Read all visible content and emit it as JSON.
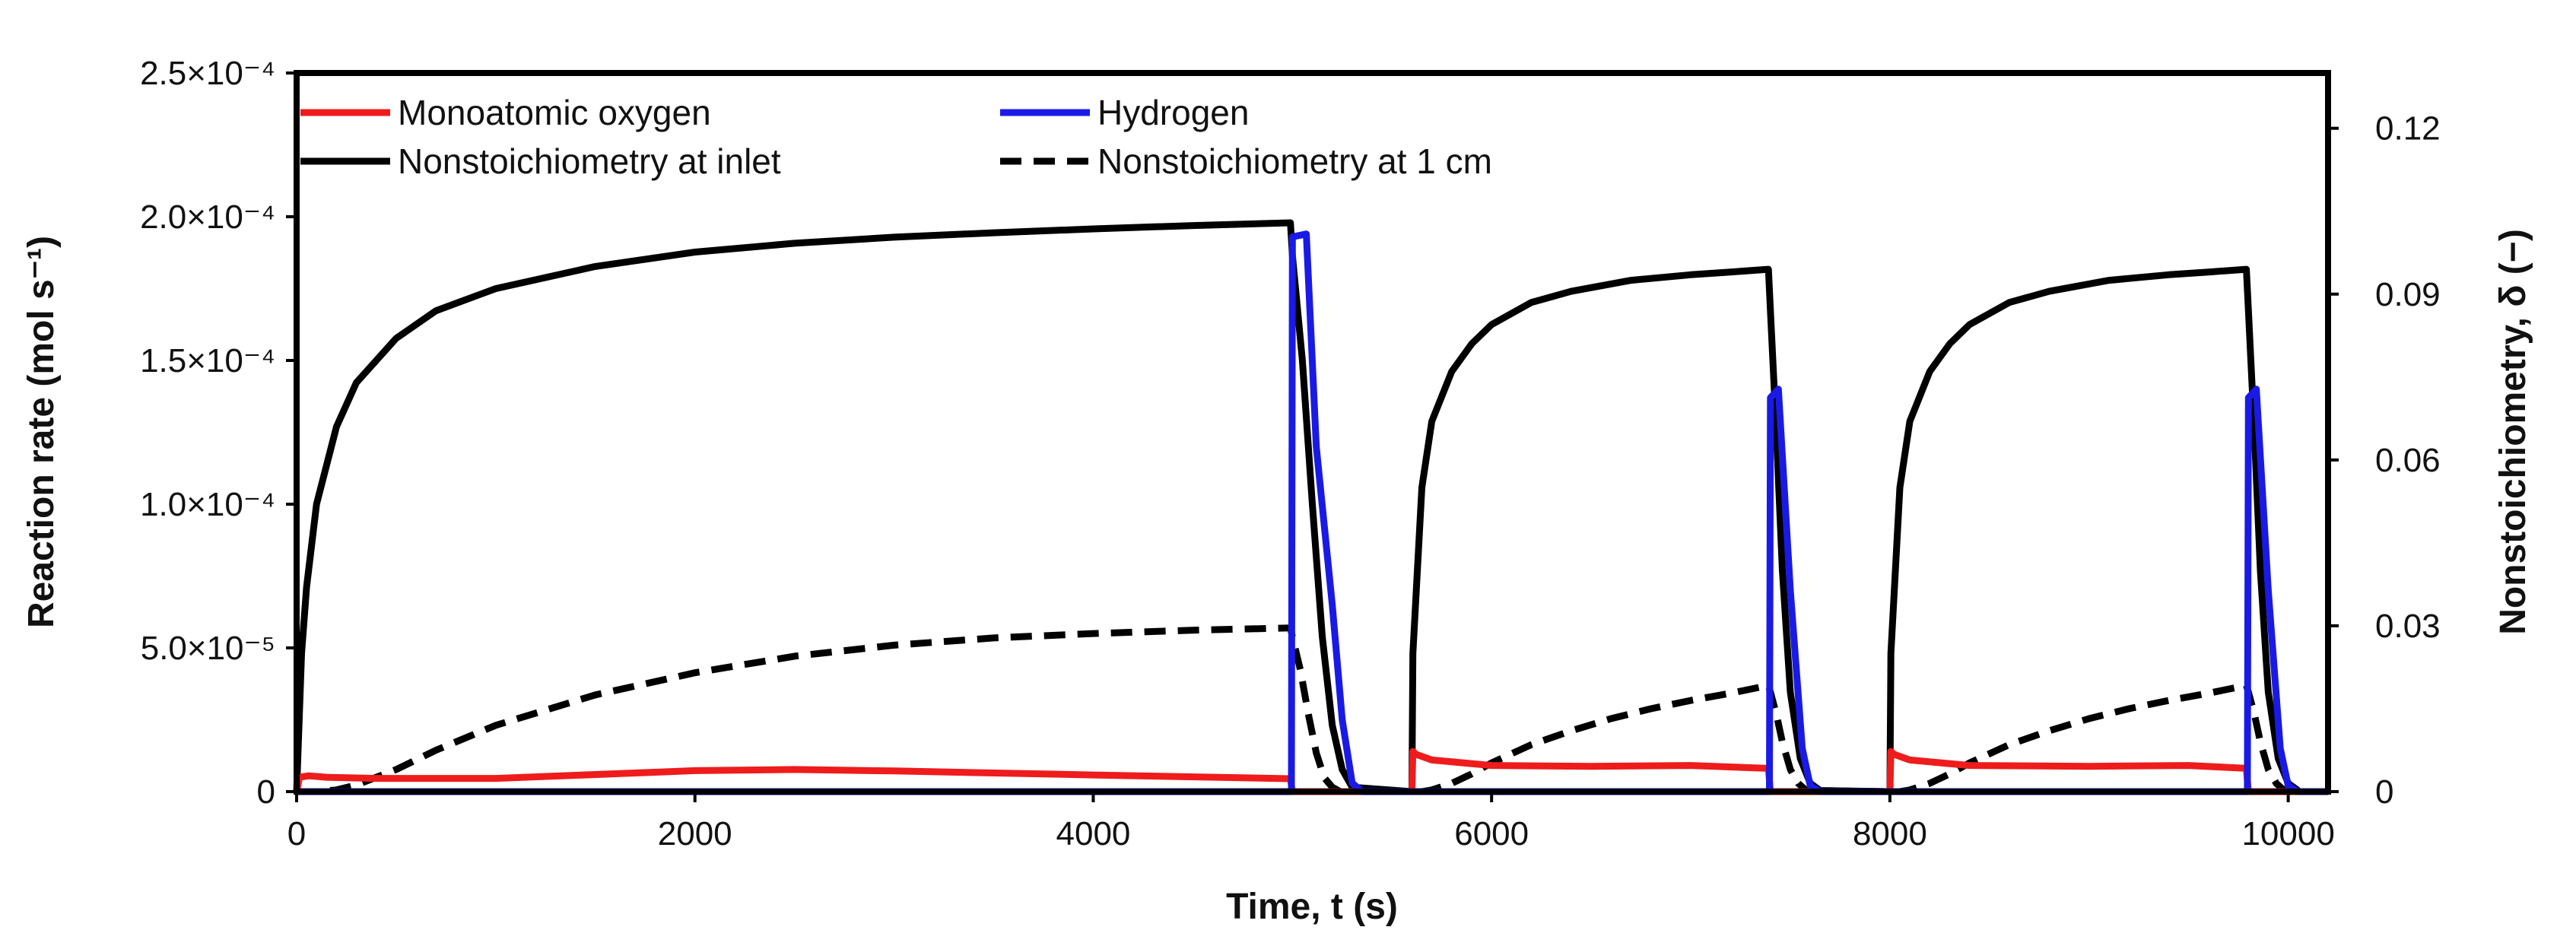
{
  "chart_data": {
    "type": "line",
    "xlabel": "Time, t (s)",
    "ylabel_left": "Reaction rate (mol s⁻¹)",
    "ylabel_right": "Nonstoichiometry, δ (−)",
    "xlim": [
      0,
      10200
    ],
    "ylim_left": [
      0,
      0.00025
    ],
    "ylim_right": [
      0,
      0.13
    ],
    "x_ticks": [
      0,
      2000,
      4000,
      6000,
      8000,
      10000
    ],
    "x_tick_labels": [
      "0",
      "2000",
      "4000",
      "6000",
      "8000",
      "10000"
    ],
    "y_left_ticks": [
      0,
      5e-05,
      0.0001,
      0.00015,
      0.0002,
      0.00025
    ],
    "y_left_tick_labels": [
      "0",
      "5.0×10⁻⁵",
      "1.0×10⁻⁴",
      "1.5×10⁻⁴",
      "2.0×10⁻⁴",
      "2.5×10⁻⁴"
    ],
    "y_right_ticks": [
      0,
      0.03,
      0.06,
      0.09,
      0.12
    ],
    "y_right_tick_labels": [
      "0",
      "0.03",
      "0.06",
      "0.09",
      "0.12"
    ],
    "grid": false,
    "legend_position": "top-left",
    "series": [
      {
        "name": "Monoatomic oxygen",
        "axis": "left",
        "color": "#ee1c1c",
        "style": "solid",
        "x": [
          0,
          15,
          60,
          150,
          400,
          1000,
          2000,
          2500,
          3000,
          4000,
          4990,
          5000,
          5005,
          5600,
          5605,
          5620,
          5700,
          6000,
          6500,
          7000,
          7390,
          7400,
          7405,
          8000,
          8005,
          8020,
          8100,
          8400,
          9000,
          9500,
          9790,
          9800,
          9805,
          10100
        ],
        "y": [
          0,
          5e-06,
          5.5e-06,
          5e-06,
          4.6e-06,
          4.6e-06,
          7.3e-06,
          7.7e-06,
          7.2e-06,
          5.8e-06,
          4.5e-06,
          0,
          0,
          0,
          1.4e-05,
          1.3e-05,
          1.1e-05,
          9.1e-06,
          8.8e-06,
          9.1e-06,
          8.1e-06,
          0,
          0,
          0,
          1.4e-05,
          1.3e-05,
          1.1e-05,
          9.1e-06,
          8.8e-06,
          9.1e-06,
          8.1e-06,
          0,
          0,
          0
        ]
      },
      {
        "name": "Hydrogen",
        "axis": "left",
        "color": "#1a1ae6",
        "style": "solid",
        "x": [
          0,
          4995,
          5000,
          5070,
          5120,
          5200,
          5250,
          5300,
          5350,
          7395,
          7400,
          7440,
          7500,
          7560,
          7600,
          7650,
          9795,
          9800,
          9840,
          9900,
          9960,
          10000,
          10050,
          10200
        ],
        "y": [
          0,
          0,
          0.000193,
          0.000194,
          0.00012,
          6.5e-05,
          2.5e-05,
          3e-06,
          0,
          0,
          0.000137,
          0.00014,
          7e-05,
          1.5e-05,
          2e-06,
          0,
          0,
          0.000137,
          0.00014,
          7e-05,
          1.5e-05,
          2e-06,
          0,
          0
        ]
      },
      {
        "name": "Nonstoichiometry at inlet",
        "axis": "right",
        "color": "#000000",
        "style": "solid",
        "x": [
          0,
          25,
          50,
          100,
          200,
          300,
          500,
          700,
          1000,
          1500,
          2000,
          2500,
          3000,
          3500,
          4000,
          4500,
          4990,
          5000,
          5050,
          5100,
          5150,
          5200,
          5250,
          5300,
          5600,
          5605,
          5650,
          5700,
          5800,
          5900,
          6000,
          6200,
          6400,
          6700,
          7000,
          7200,
          7390,
          7400,
          7430,
          7460,
          7500,
          7550,
          7600,
          7650,
          8000,
          8005,
          8050,
          8100,
          8200,
          8300,
          8400,
          8600,
          8800,
          9100,
          9400,
          9600,
          9790,
          9800,
          9830,
          9860,
          9900,
          9950,
          10000,
          10050
        ],
        "y": [
          0,
          0.025,
          0.037,
          0.052,
          0.066,
          0.074,
          0.082,
          0.087,
          0.091,
          0.095,
          0.0976,
          0.0992,
          0.1003,
          0.1011,
          0.1018,
          0.1024,
          0.1029,
          0.097,
          0.078,
          0.052,
          0.028,
          0.012,
          0.004,
          0.0008,
          0,
          0.025,
          0.055,
          0.067,
          0.076,
          0.081,
          0.0845,
          0.0885,
          0.0905,
          0.0925,
          0.0935,
          0.094,
          0.0945,
          0.087,
          0.065,
          0.04,
          0.018,
          0.006,
          0.0015,
          0.0002,
          0,
          0.025,
          0.055,
          0.067,
          0.076,
          0.081,
          0.0845,
          0.0885,
          0.0905,
          0.0925,
          0.0935,
          0.094,
          0.0945,
          0.087,
          0.065,
          0.04,
          0.018,
          0.006,
          0.0015,
          0.0002
        ]
      },
      {
        "name": "Nonstoichiometry at 1 cm",
        "axis": "right",
        "color": "#000000",
        "style": "dashed",
        "x": [
          0,
          100,
          200,
          300,
          500,
          700,
          1000,
          1500,
          2000,
          2500,
          3000,
          3500,
          4000,
          4500,
          4990,
          5000,
          5040,
          5080,
          5120,
          5160,
          5200,
          5240,
          5600,
          5650,
          5700,
          5800,
          5900,
          6000,
          6200,
          6400,
          6600,
          6800,
          7000,
          7200,
          7390,
          7400,
          7430,
          7460,
          7500,
          7540,
          7580,
          8000,
          8050,
          8100,
          8200,
          8300,
          8400,
          8600,
          8800,
          9000,
          9200,
          9400,
          9600,
          9790,
          9800,
          9830,
          9860,
          9900,
          9940,
          9980,
          10050
        ],
        "y": [
          0,
          0,
          0.0003,
          0.0012,
          0.004,
          0.0075,
          0.012,
          0.0175,
          0.0215,
          0.0245,
          0.0265,
          0.0278,
          0.0286,
          0.0292,
          0.0296,
          0.028,
          0.022,
          0.014,
          0.007,
          0.0025,
          0.0008,
          0,
          0,
          0,
          0.0003,
          0.0015,
          0.0032,
          0.0052,
          0.0085,
          0.011,
          0.0132,
          0.015,
          0.0165,
          0.0178,
          0.0192,
          0.018,
          0.014,
          0.009,
          0.004,
          0.0015,
          0.0002,
          0,
          0,
          0.0003,
          0.0015,
          0.0032,
          0.0052,
          0.0085,
          0.011,
          0.0132,
          0.015,
          0.0165,
          0.0178,
          0.0192,
          0.018,
          0.014,
          0.009,
          0.004,
          0.0015,
          0.0002,
          0
        ]
      }
    ]
  }
}
